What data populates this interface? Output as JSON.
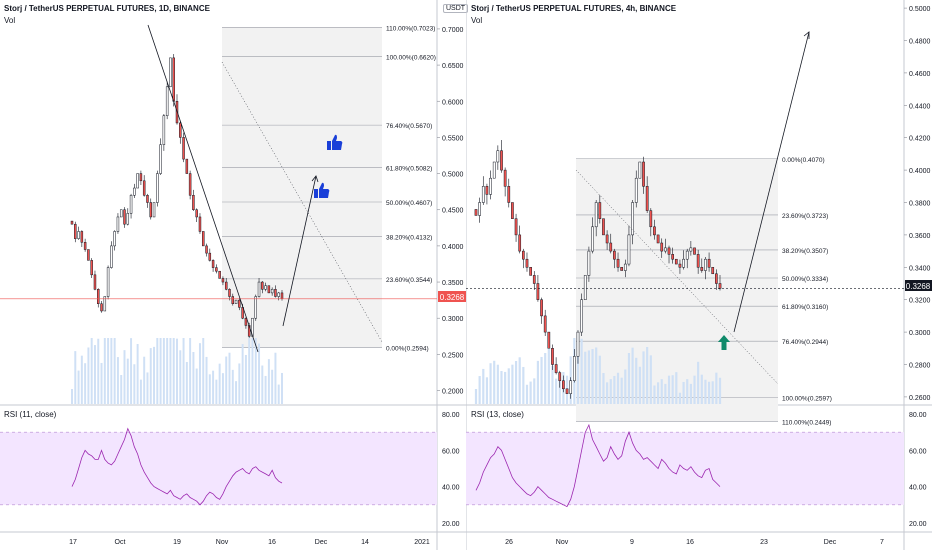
{
  "left": {
    "title": "Storj / TetherUS PERPETUAL FUTURES, 1D, BINANCE",
    "vol_label": "Vol",
    "currency_badge": "USDT",
    "price_ticks": [
      "0.7000",
      "0.6500",
      "0.6000",
      "0.5500",
      "0.5000",
      "0.4500",
      "0.4000",
      "0.3500",
      "0.3000",
      "0.2500",
      "0.2000"
    ],
    "last_price": "0.3268",
    "fib_levels": [
      {
        "label": "110.00%(0.7023)",
        "price": 0.7023
      },
      {
        "label": "100.00%(0.6620)",
        "price": 0.662
      },
      {
        "label": "76.40%(0.5670)",
        "price": 0.567
      },
      {
        "label": "61.80%(0.5082)",
        "price": 0.5082
      },
      {
        "label": "50.00%(0.4607)",
        "price": 0.4607
      },
      {
        "label": "38.20%(0.4132)",
        "price": 0.4132
      },
      {
        "label": "23.60%(0.3544)",
        "price": 0.3544
      },
      {
        "label": "0.00%(0.2594)",
        "price": 0.2594
      }
    ],
    "rsi_label": "RSI (11, close)",
    "rsi_ticks": [
      "80.00",
      "60.00",
      "40.00",
      "20.00"
    ],
    "rsi_band": [
      70,
      30
    ],
    "x_ticks": [
      "17",
      "Oct",
      "19",
      "Nov",
      "16",
      "Dec",
      "14",
      "2021"
    ],
    "thumb_icon": "thumbs-up-icon"
  },
  "right": {
    "title": "Storj / TetherUS PERPETUAL FUTURES, 4h, BINANCE",
    "vol_label": "Vol",
    "price_ticks": [
      "0.5000",
      "0.4800",
      "0.4600",
      "0.4400",
      "0.4200",
      "0.4000",
      "0.3800",
      "0.3600",
      "0.3400",
      "0.3200",
      "0.3000",
      "0.2800",
      "0.2600"
    ],
    "last_price": "0.3268",
    "fib_levels": [
      {
        "label": "0.00%(0.4070)",
        "price": 0.407
      },
      {
        "label": "23.60%(0.3723)",
        "price": 0.3723
      },
      {
        "label": "38.20%(0.3507)",
        "price": 0.3507
      },
      {
        "label": "50.00%(0.3334)",
        "price": 0.3334
      },
      {
        "label": "61.80%(0.3160)",
        "price": 0.316
      },
      {
        "label": "76.40%(0.2944)",
        "price": 0.2944
      },
      {
        "label": "100.00%(0.2597)",
        "price": 0.2597
      },
      {
        "label": "110.00%(0.2449)",
        "price": 0.2449
      }
    ],
    "rsi_label": "RSI (13, close)",
    "rsi_ticks": [
      "80.00",
      "60.00",
      "40.00",
      "20.00"
    ],
    "rsi_band": [
      70,
      30
    ],
    "x_ticks": [
      "26",
      "Nov",
      "9",
      "16",
      "23",
      "Dec",
      "7"
    ],
    "arrow_icon": "up-arrow-icon"
  },
  "colors": {
    "up": "#26a69a",
    "down": "#ef5350",
    "candle": "#131722",
    "rsi": "#9c27b0",
    "rsi_band": "#f3e5ff",
    "fib_bg": "#f2f2f2",
    "volume": "#cfe0f5",
    "price_line": "#ef5350",
    "thumb": "#1a3fd8",
    "arrow": "#0f8a6a"
  },
  "chart_data": [
    {
      "type": "candlestick",
      "title": "Storj / TetherUS PERPETUAL FUTURES, 1D, BINANCE",
      "ylim": [
        0.18,
        0.74
      ],
      "close": [
        0.43,
        0.41,
        0.42,
        0.405,
        0.395,
        0.38,
        0.36,
        0.34,
        0.32,
        0.31,
        0.33,
        0.37,
        0.4,
        0.42,
        0.44,
        0.45,
        0.43,
        0.445,
        0.47,
        0.48,
        0.5,
        0.49,
        0.47,
        0.46,
        0.44,
        0.46,
        0.5,
        0.54,
        0.58,
        0.62,
        0.66,
        0.6,
        0.57,
        0.55,
        0.52,
        0.5,
        0.47,
        0.45,
        0.44,
        0.42,
        0.4,
        0.39,
        0.38,
        0.37,
        0.365,
        0.355,
        0.35,
        0.34,
        0.33,
        0.32,
        0.325,
        0.315,
        0.3,
        0.29,
        0.275,
        0.3,
        0.33,
        0.35,
        0.34,
        0.345,
        0.335,
        0.34,
        0.33,
        0.335,
        0.327
      ],
      "rsi": [
        40,
        44,
        50,
        56,
        60,
        58,
        57,
        55,
        55,
        60,
        55,
        53,
        52,
        54,
        58,
        62,
        66,
        72,
        68,
        62,
        58,
        52,
        48,
        45,
        42,
        40,
        39,
        38,
        37,
        36,
        38,
        35,
        34,
        33,
        35,
        36,
        34,
        33,
        32,
        30,
        32,
        35,
        37,
        36,
        34,
        33,
        36,
        40,
        43,
        46,
        48,
        49,
        50,
        48,
        47,
        50,
        51,
        49,
        48,
        47,
        46,
        49,
        45,
        43,
        42
      ]
    },
    {
      "type": "candlestick",
      "title": "Storj / TetherUS PERPETUAL FUTURES, 4h, BINANCE",
      "ylim": [
        0.255,
        0.505
      ],
      "close": [
        0.372,
        0.38,
        0.39,
        0.385,
        0.395,
        0.405,
        0.412,
        0.4,
        0.39,
        0.38,
        0.37,
        0.36,
        0.35,
        0.345,
        0.34,
        0.335,
        0.33,
        0.32,
        0.31,
        0.3,
        0.29,
        0.28,
        0.275,
        0.27,
        0.265,
        0.262,
        0.27,
        0.285,
        0.3,
        0.32,
        0.335,
        0.35,
        0.365,
        0.38,
        0.37,
        0.36,
        0.355,
        0.35,
        0.345,
        0.34,
        0.338,
        0.342,
        0.36,
        0.38,
        0.395,
        0.405,
        0.39,
        0.375,
        0.365,
        0.36,
        0.355,
        0.35,
        0.352,
        0.348,
        0.345,
        0.342,
        0.34,
        0.345,
        0.35,
        0.352,
        0.348,
        0.34,
        0.338,
        0.345,
        0.34,
        0.336,
        0.33,
        0.327
      ],
      "rsi": [
        38,
        42,
        48,
        52,
        56,
        58,
        62,
        60,
        55,
        50,
        45,
        42,
        40,
        38,
        36,
        35,
        37,
        40,
        38,
        36,
        34,
        33,
        32,
        31,
        30,
        29,
        33,
        40,
        50,
        60,
        70,
        74,
        66,
        62,
        58,
        54,
        56,
        62,
        58,
        55,
        57,
        65,
        70,
        64,
        60,
        58,
        55,
        56,
        54,
        52,
        50,
        55,
        53,
        50,
        48,
        47,
        52,
        50,
        49,
        51,
        48,
        46,
        45,
        49,
        50,
        44,
        42,
        40
      ]
    }
  ]
}
